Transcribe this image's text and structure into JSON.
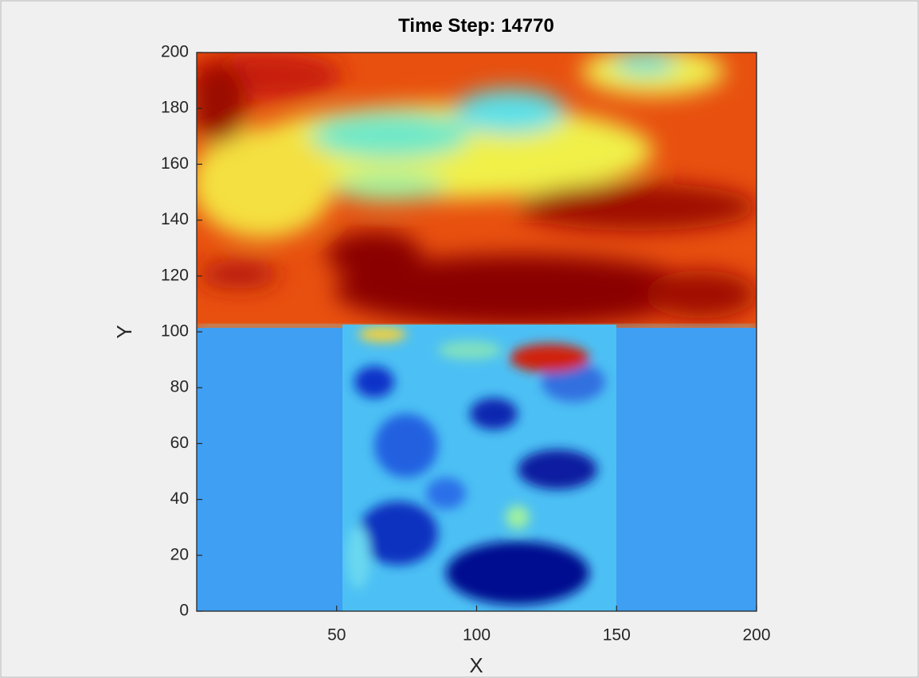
{
  "chart_data": {
    "type": "image",
    "title": "Time Step: 14770",
    "xlabel": "X",
    "ylabel": "Y",
    "xlim": [
      0,
      200
    ],
    "ylim": [
      0,
      200
    ],
    "xticks": [
      50,
      100,
      150,
      200
    ],
    "yticks": [
      0,
      20,
      40,
      60,
      80,
      100,
      120,
      140,
      160,
      180,
      200
    ],
    "colormap": "jet"
  }
}
